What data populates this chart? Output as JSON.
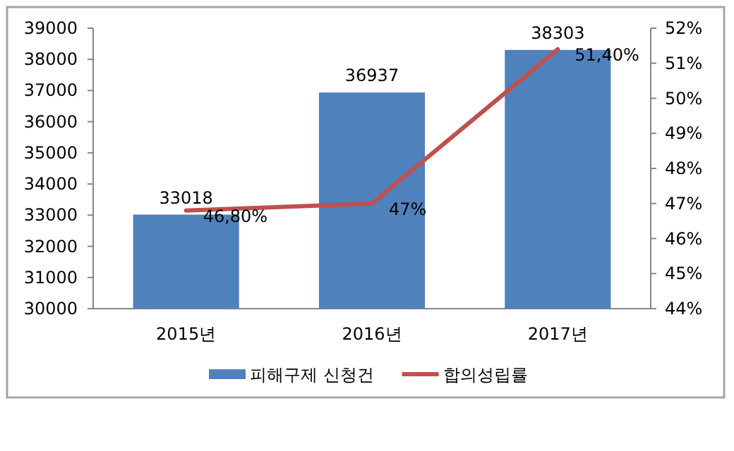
{
  "chart_data": {
    "type": "bar",
    "categories": [
      "2015년",
      "2016년",
      "2017년"
    ],
    "series": [
      {
        "name": "피해구제 신청건",
        "color": "#4f81bd",
        "values": [
          33018,
          36937,
          38303
        ],
        "value_labels": [
          "33018",
          "36937",
          "38303"
        ]
      },
      {
        "name": "합의성립률",
        "type": "line",
        "axis": "y2",
        "color": "#c0504d",
        "values": [
          46.8,
          47,
          51.4
        ],
        "value_labels": [
          "46,80%",
          "47%",
          "51,40%"
        ]
      }
    ],
    "ylim": [
      30000,
      39000
    ],
    "yticks": [
      30000,
      31000,
      32000,
      33000,
      34000,
      35000,
      36000,
      37000,
      38000,
      39000
    ],
    "y2lim": [
      44,
      52
    ],
    "y2ticks": [
      {
        "value": 44,
        "label": "44%"
      },
      {
        "value": 45,
        "label": "45%"
      },
      {
        "value": 46,
        "label": "46%"
      },
      {
        "value": 47,
        "label": "47%"
      },
      {
        "value": 48,
        "label": "48%"
      },
      {
        "value": 49,
        "label": "49%"
      },
      {
        "value": 50,
        "label": "50%"
      },
      {
        "value": 51,
        "label": "51%"
      },
      {
        "value": 52,
        "label": "52%"
      }
    ],
    "grid": false,
    "legend": "bottom",
    "marker": "none",
    "line_style": "solid"
  }
}
